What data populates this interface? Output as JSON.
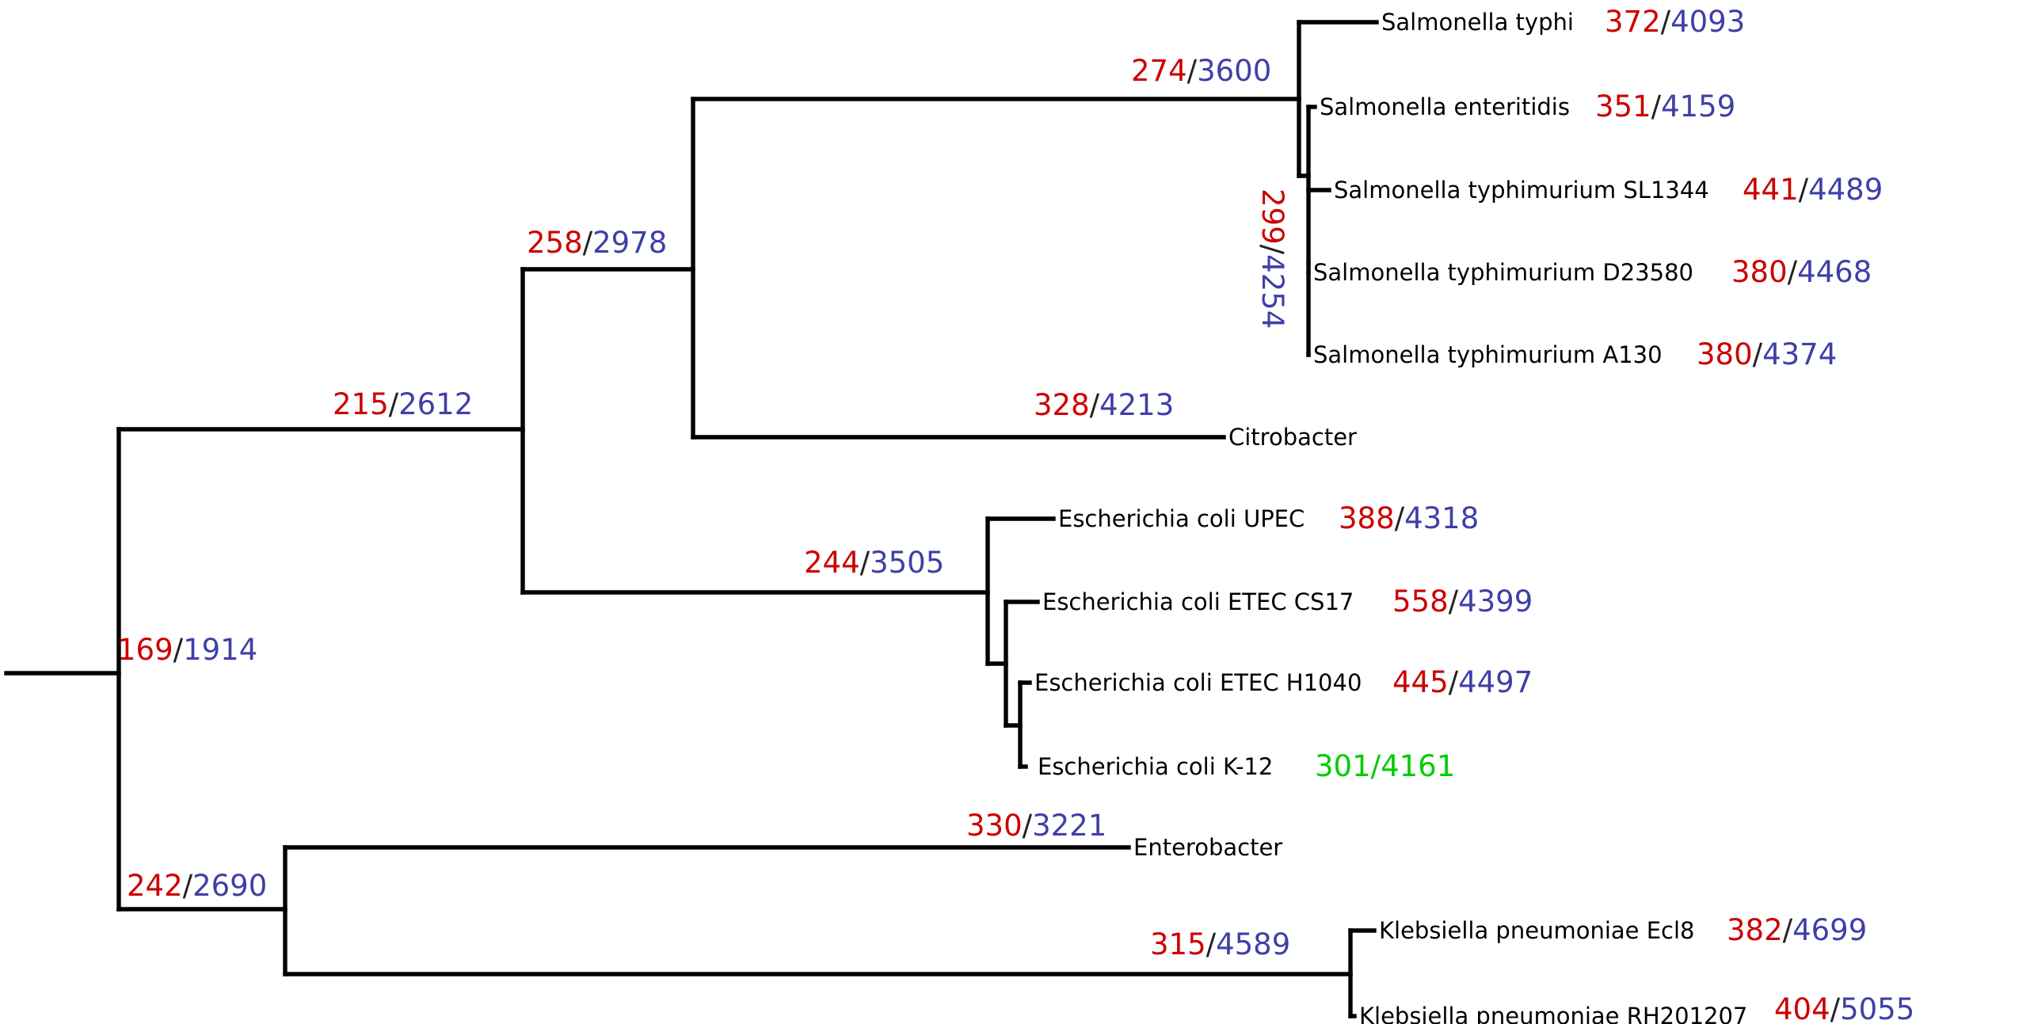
{
  "colors": {
    "branch": "#000000",
    "red": "#cc0000",
    "blue": "#3f3fa8",
    "slash": "#222222",
    "green": "#00cc00",
    "leaf_label": "#000000"
  },
  "leaves": [
    {
      "id": "sal_typhi",
      "label": "Salmonella typhi",
      "red": "372",
      "blue": "4093"
    },
    {
      "id": "sal_enteritidis",
      "label": "Salmonella enteritidis",
      "red": "351",
      "blue": "4159"
    },
    {
      "id": "sal_sl1344",
      "label": "Salmonella typhimurium SL1344",
      "red": "441",
      "blue": "4489"
    },
    {
      "id": "sal_d23580",
      "label": "Salmonella typhimurium D23580",
      "red": "380",
      "blue": "4468"
    },
    {
      "id": "sal_a130",
      "label": "Salmonella typhimurium A130",
      "red": "380",
      "blue": "4374"
    },
    {
      "id": "citrobacter",
      "label": "Citrobacter",
      "red": "",
      "blue": ""
    },
    {
      "id": "ecoli_upec",
      "label": "Escherichia coli UPEC",
      "red": "388",
      "blue": "4318"
    },
    {
      "id": "ecoli_cs17",
      "label": "Escherichia coli ETEC CS17",
      "red": "558",
      "blue": "4399"
    },
    {
      "id": "ecoli_h1040",
      "label": "Escherichia coli ETEC H1040",
      "red": "445",
      "blue": "4497"
    },
    {
      "id": "ecoli_k12",
      "label": "Escherichia coli K-12",
      "highlight": "301/4161"
    },
    {
      "id": "enterobacter",
      "label": "Enterobacter",
      "red": "",
      "blue": ""
    },
    {
      "id": "kleb_ecl8",
      "label": "Klebsiella pneumoniae Ecl8",
      "red": "382",
      "blue": "4699"
    },
    {
      "id": "kleb_rh",
      "label": "Klebsiella pneumoniae RH201207",
      "red": "404",
      "blue": "5055"
    }
  ],
  "internal_nodes": [
    {
      "id": "root",
      "red": "169",
      "blue": "1914"
    },
    {
      "id": "upper_clade",
      "red": "215",
      "blue": "2612"
    },
    {
      "id": "kleb_ent_clade",
      "red": "242",
      "blue": "2690"
    },
    {
      "id": "sal_cit_clade",
      "red": "258",
      "blue": "2978"
    },
    {
      "id": "salmonella_clade",
      "red": "274",
      "blue": "3600"
    },
    {
      "id": "typhimurium_clade",
      "red": "299",
      "blue": "4254"
    },
    {
      "id": "citrobacter_branch",
      "red": "328",
      "blue": "4213"
    },
    {
      "id": "ecoli_clade",
      "red": "244",
      "blue": "3505"
    },
    {
      "id": "enterobacter_branch",
      "red": "330",
      "blue": "3221"
    },
    {
      "id": "klebsiella_clade",
      "red": "315",
      "blue": "4589"
    }
  ]
}
